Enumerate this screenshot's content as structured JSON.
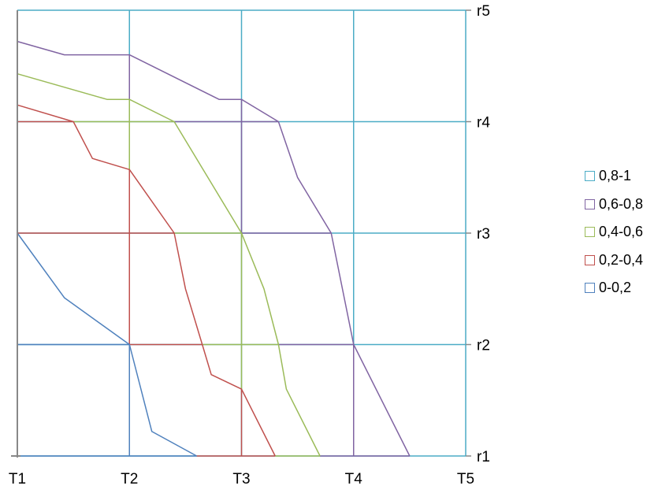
{
  "chart_data": {
    "type": "area",
    "x_categories": [
      "T1",
      "T2",
      "T3",
      "T4",
      "T5"
    ],
    "y_categories": [
      "r1",
      "r2",
      "r3",
      "r4",
      "r5"
    ],
    "series": [
      {
        "name": "0-0,2",
        "color": "#4F81BD",
        "contour": [
          [
            1,
            3
          ],
          [
            1.42,
            2.42
          ],
          [
            2,
            2
          ],
          [
            2.2,
            1.22
          ],
          [
            2.6,
            1
          ]
        ]
      },
      {
        "name": "0,2-0,4",
        "color": "#C0504D",
        "contour": [
          [
            1,
            4.15
          ],
          [
            1.5,
            4
          ],
          [
            1.67,
            3.67
          ],
          [
            2,
            3.57
          ],
          [
            2.4,
            3
          ],
          [
            2.5,
            2.5
          ],
          [
            2.65,
            2
          ],
          [
            2.73,
            1.73
          ],
          [
            3,
            1.6
          ],
          [
            3.3,
            1
          ]
        ]
      },
      {
        "name": "0,4-0,6",
        "color": "#9BBB59",
        "contour": [
          [
            1,
            4.43
          ],
          [
            1.8,
            4.2
          ],
          [
            2,
            4.2
          ],
          [
            2.4,
            4
          ],
          [
            2.7,
            3.5
          ],
          [
            3,
            3
          ],
          [
            3.2,
            2.5
          ],
          [
            3.33,
            2
          ],
          [
            3.4,
            1.6
          ],
          [
            3.7,
            1
          ]
        ]
      },
      {
        "name": "0,6-0,8",
        "color": "#8064A2",
        "contour": [
          [
            1,
            4.72
          ],
          [
            1.42,
            4.6
          ],
          [
            2,
            4.6
          ],
          [
            2.8,
            4.2
          ],
          [
            3,
            4.2
          ],
          [
            3.33,
            4
          ],
          [
            3.5,
            3.5
          ],
          [
            3.8,
            3
          ],
          [
            4,
            2
          ],
          [
            4.5,
            1
          ]
        ]
      },
      {
        "name": "0,8-1",
        "color": "#4BACC6",
        "contour": []
      }
    ],
    "legend_order": [
      "0,8-1",
      "0,6-0,8",
      "0,4-0,6",
      "0,2-0,4",
      "0-0,2"
    ],
    "legend_position": "right",
    "grid": true
  }
}
